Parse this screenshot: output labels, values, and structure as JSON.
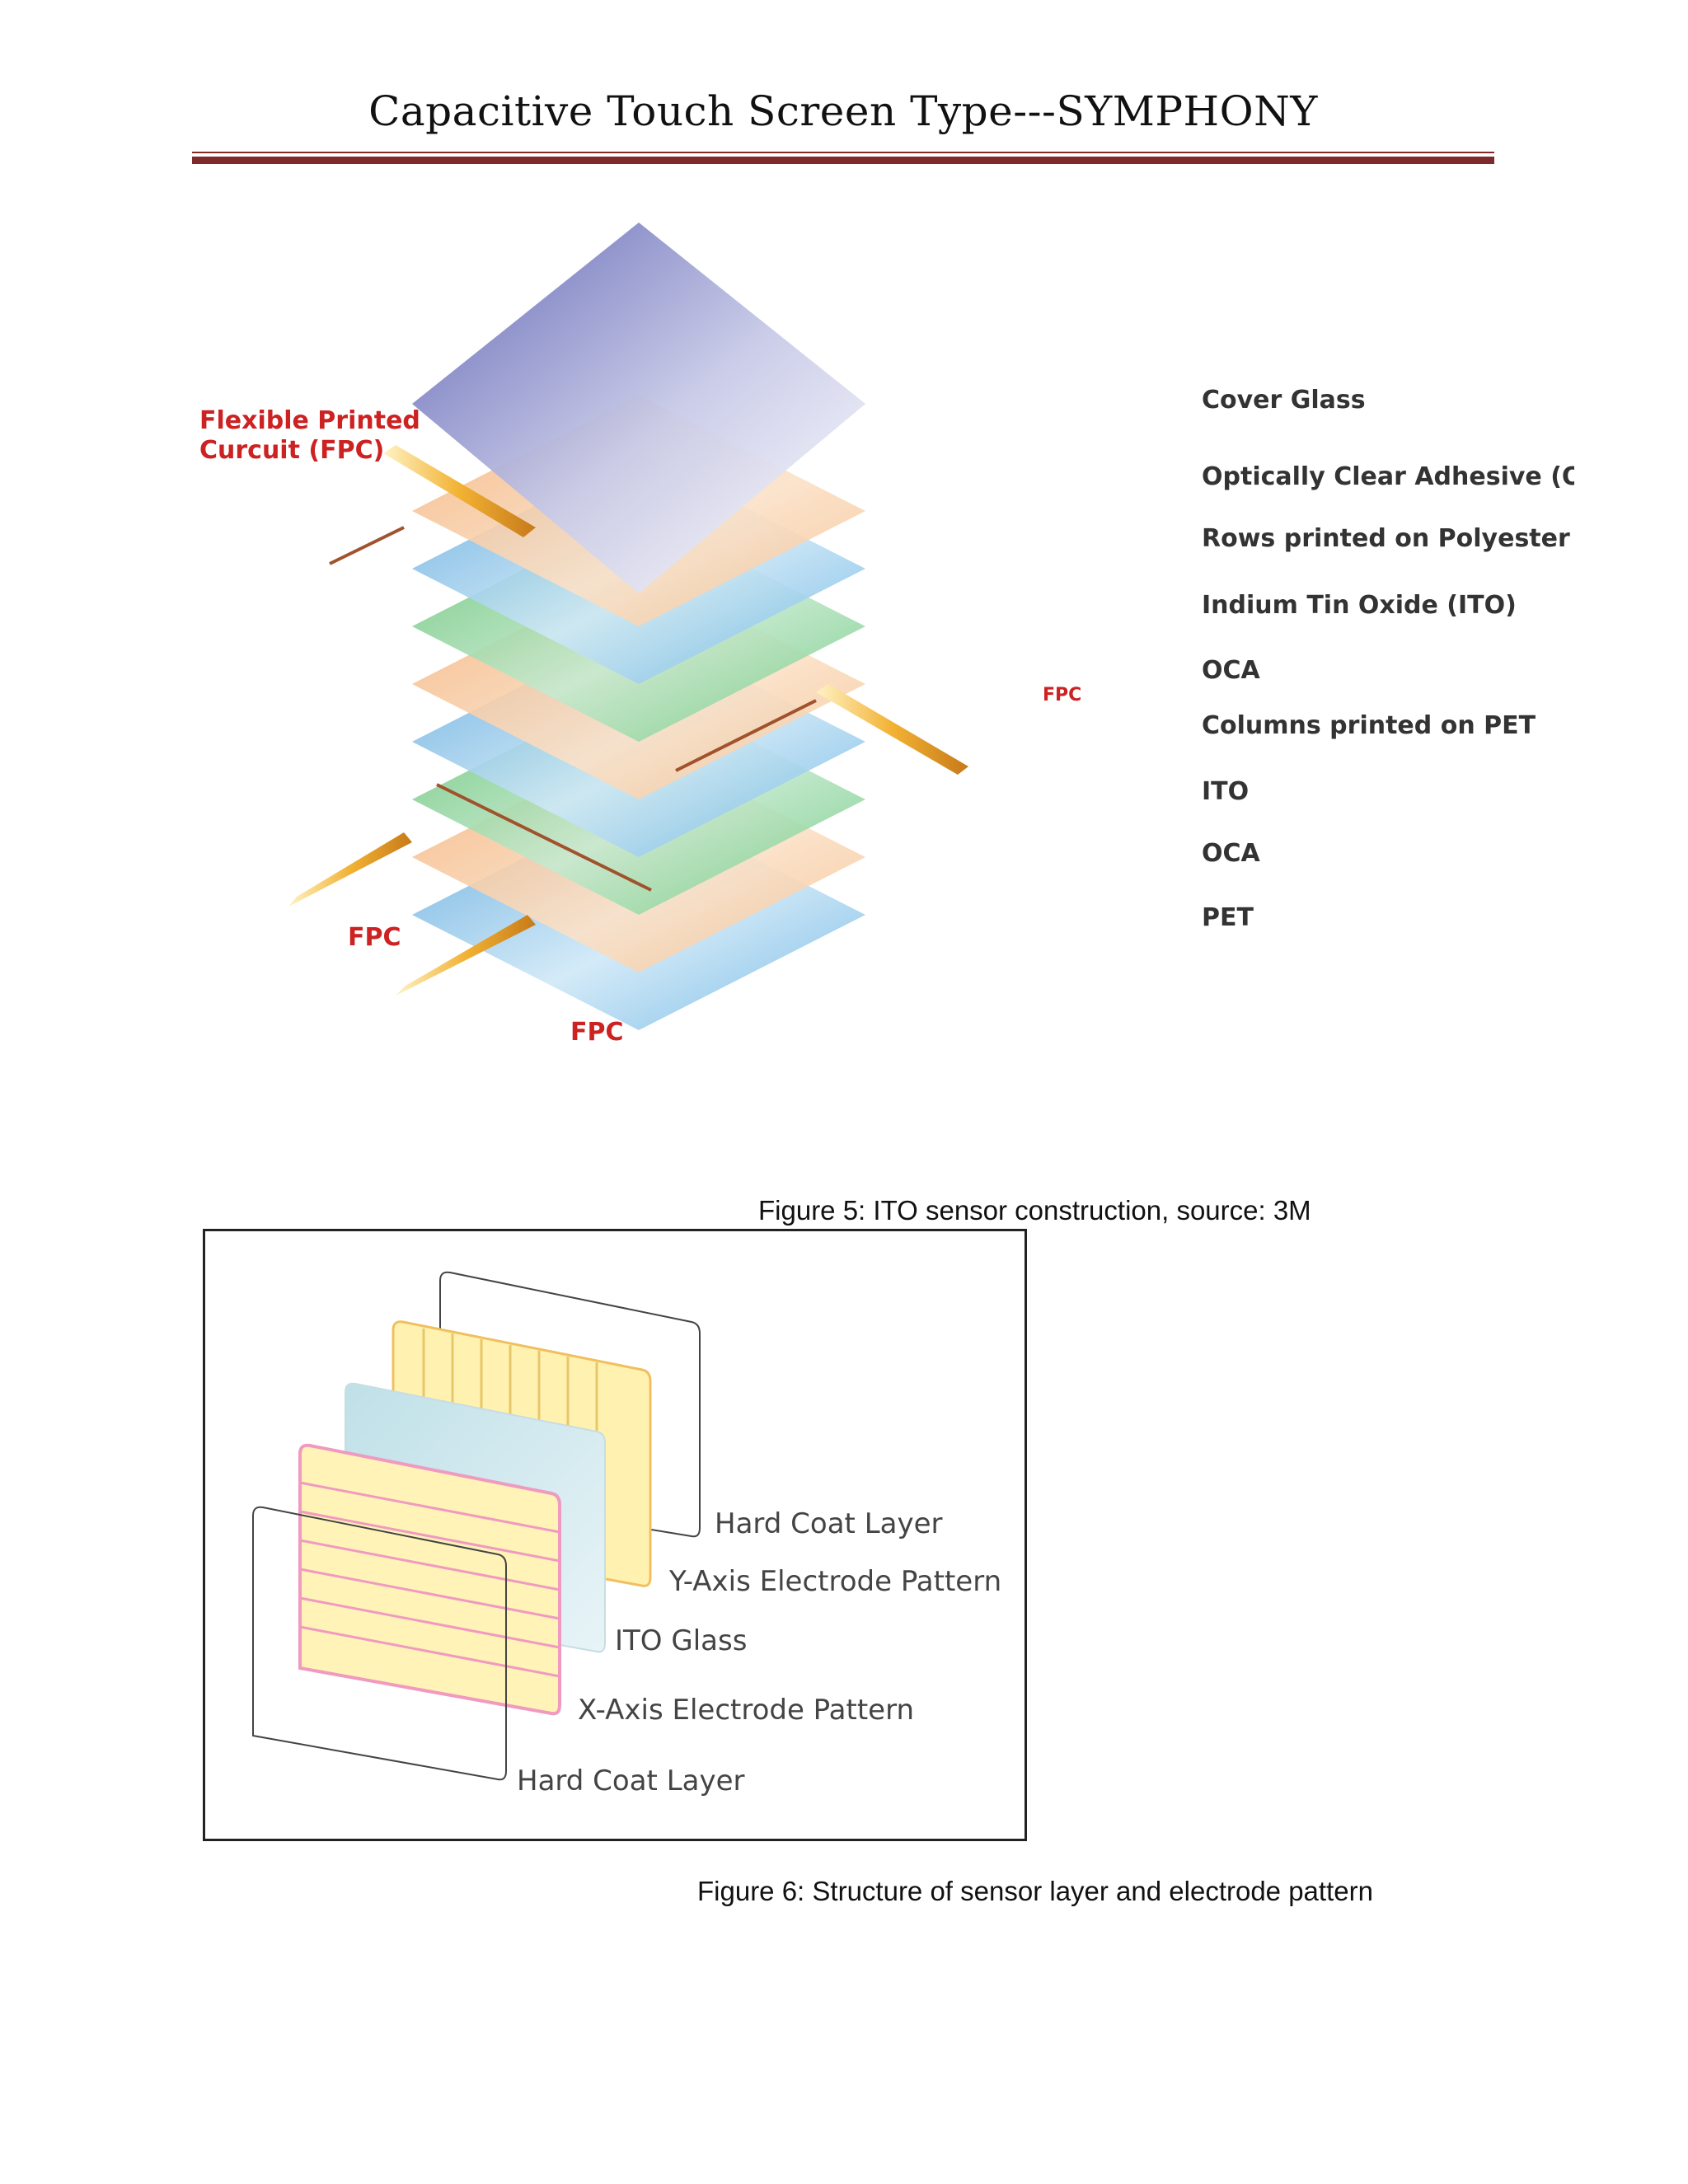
{
  "header": {
    "title": "Capacitive Touch Screen Type---SYMPHONY"
  },
  "figure5": {
    "caption": "Figure 5: ITO sensor construction, source: 3M",
    "labels": [
      "Cover Glass",
      "Optically Clear Adhesive (OCA)",
      "Rows printed on Polyester (PET)",
      "Indium Tin Oxide (ITO)",
      "OCA",
      "Columns printed on PET",
      "ITO",
      "OCA",
      "PET"
    ],
    "fpc_title_line1": "Flexible Printed",
    "fpc_title_line2": "Curcuit (FPC)",
    "fpc_right": "FPC",
    "fpc_left": "FPC",
    "fpc_bottom": "FPC"
  },
  "figure6": {
    "caption": "Figure 6: Structure of sensor layer and electrode pattern",
    "labels": [
      "Hard Coat Layer",
      "Y-Axis Electrode Pattern",
      "ITO Glass",
      "X-Axis Electrode Pattern",
      "Hard Coat Layer"
    ]
  }
}
